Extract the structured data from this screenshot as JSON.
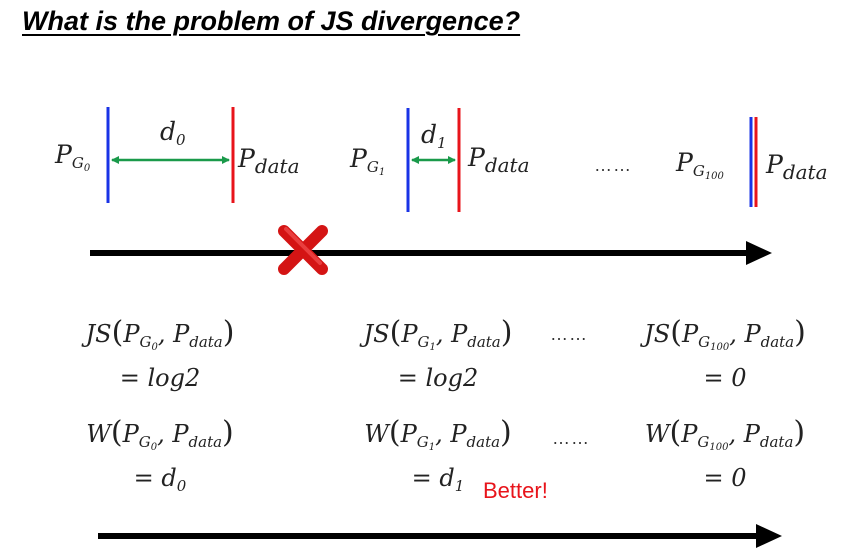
{
  "title": "What is the problem of JS divergence?",
  "colors": {
    "generator_line": "#1a33e6",
    "data_line": "#e8141b",
    "distance_arrow": "#1a9a4a",
    "axis_arrow": "#000000",
    "cross": "#e02020",
    "better": "#e8141b"
  },
  "icons": {
    "cross": "red-x-icon"
  },
  "top_row": {
    "items": [
      {
        "left_label": "P",
        "left_sub": "G",
        "left_subsub": "0",
        "distance": "d",
        "distance_sub": "0",
        "right_label": "P",
        "right_sub": "data"
      },
      {
        "left_label": "P",
        "left_sub": "G",
        "left_subsub": "1",
        "distance": "d",
        "distance_sub": "1",
        "right_label": "P",
        "right_sub": "data"
      },
      {
        "left_label": "P",
        "left_sub": "G",
        "left_subsub": "100",
        "right_label": "P",
        "right_sub": "data"
      }
    ],
    "ellipsis": "……"
  },
  "js_row": {
    "items": [
      {
        "fn": "JS",
        "g": "G",
        "gsub": "0",
        "data": "data",
        "result": "= log2"
      },
      {
        "fn": "JS",
        "g": "G",
        "gsub": "1",
        "data": "data",
        "result": "= log2"
      },
      {
        "fn": "JS",
        "g": "G",
        "gsub": "100",
        "data": "data",
        "result": "= 0"
      }
    ],
    "ellipsis": "……"
  },
  "w_row": {
    "items": [
      {
        "fn": "W",
        "g": "G",
        "gsub": "0",
        "data": "data",
        "result_prefix": "= d",
        "result_sub": "0"
      },
      {
        "fn": "W",
        "g": "G",
        "gsub": "1",
        "data": "data",
        "result_prefix": "= d",
        "result_sub": "1"
      },
      {
        "fn": "W",
        "g": "G",
        "gsub": "100",
        "data": "data",
        "result_prefix": "= 0",
        "result_sub": ""
      }
    ],
    "ellipsis": "……",
    "annotation": "Better!"
  }
}
